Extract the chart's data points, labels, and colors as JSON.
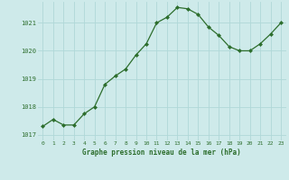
{
  "x": [
    0,
    1,
    2,
    3,
    4,
    5,
    6,
    7,
    8,
    9,
    10,
    11,
    12,
    13,
    14,
    15,
    16,
    17,
    18,
    19,
    20,
    21,
    22,
    23
  ],
  "y": [
    1017.3,
    1017.55,
    1017.35,
    1017.35,
    1017.75,
    1018.0,
    1018.8,
    1019.1,
    1019.35,
    1019.85,
    1020.25,
    1021.0,
    1021.2,
    1021.55,
    1021.5,
    1021.3,
    1020.85,
    1020.55,
    1020.15,
    1020.0,
    1020.0,
    1020.25,
    1020.6,
    1021.0
  ],
  "line_color": "#2d6e2d",
  "marker": "D",
  "marker_size": 2.0,
  "bg_color": "#ceeaea",
  "grid_color": "#b0d8d8",
  "xlabel": "Graphe pression niveau de la mer (hPa)",
  "xlabel_color": "#2d6e2d",
  "tick_color": "#2d6e2d",
  "ylim": [
    1016.8,
    1021.75
  ],
  "yticks": [
    1017,
    1018,
    1019,
    1020,
    1021
  ],
  "xlim": [
    -0.5,
    23.5
  ],
  "xticks": [
    0,
    1,
    2,
    3,
    4,
    5,
    6,
    7,
    8,
    9,
    10,
    11,
    12,
    13,
    14,
    15,
    16,
    17,
    18,
    19,
    20,
    21,
    22,
    23
  ]
}
